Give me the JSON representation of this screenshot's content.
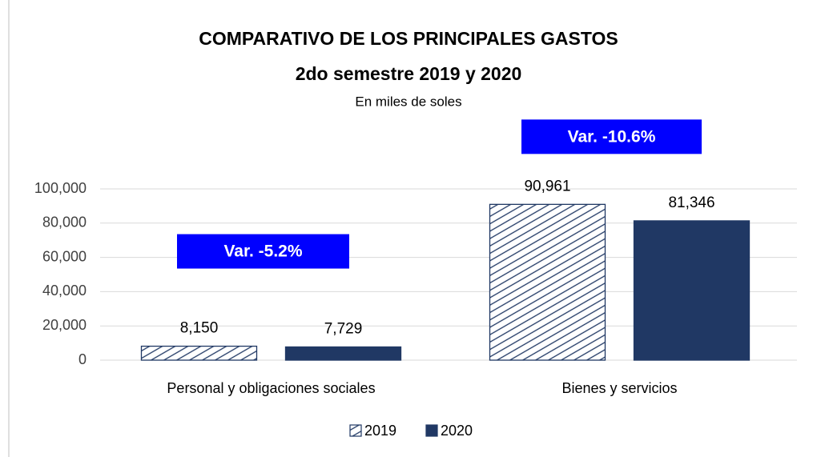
{
  "chart_data": {
    "type": "bar",
    "title": [
      "COMPARATIVO DE LOS PRINCIPALES GASTOS",
      "2do semestre 2019 y 2020"
    ],
    "subtitle": "En miles  de soles",
    "categories": [
      "Personal y obligaciones sociales",
      "Bienes y servicios"
    ],
    "series": [
      {
        "name": "2019",
        "color": "#203864",
        "pattern": "hatch",
        "values": [
          8150,
          90961
        ],
        "value_labels": [
          "8,150",
          "90,961"
        ]
      },
      {
        "name": "2020",
        "color": "#203864",
        "values": [
          7729,
          81346
        ],
        "value_labels": [
          "7,729",
          "81,346"
        ]
      }
    ],
    "annotations": [
      "Var. -5.2%",
      "Var. -10.6%"
    ],
    "annotation_color": "#0000ff",
    "ylim": [
      0,
      100000
    ],
    "yticks": [
      0,
      {
        "value": 20000,
        "label": "20,000"
      },
      {
        "value": 40000,
        "label": "40,000"
      },
      {
        "value": 60000,
        "label": "60,000"
      },
      {
        "value": 80000,
        "label": "80,000"
      },
      {
        "value": 100000,
        "label": "100,000"
      }
    ],
    "grid": true,
    "legend": "bottom"
  }
}
